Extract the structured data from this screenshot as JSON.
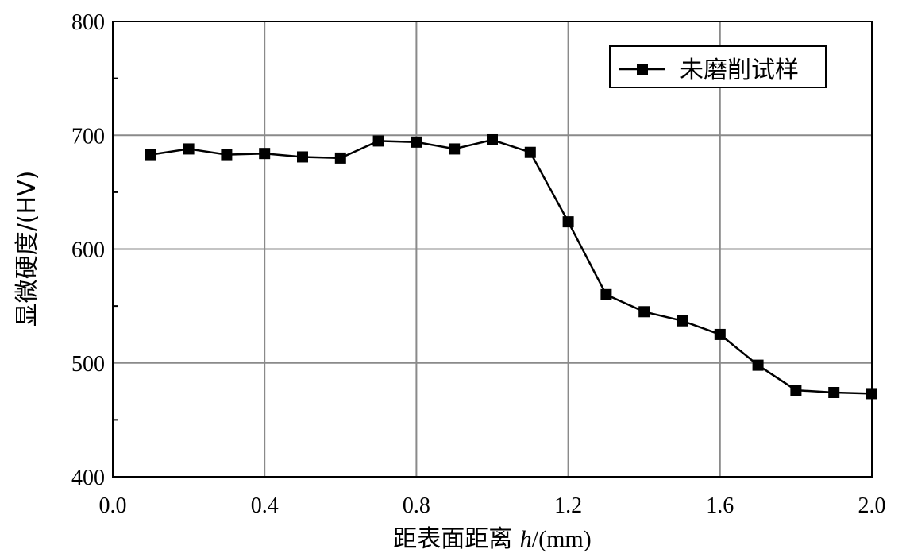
{
  "chart_data": {
    "type": "line",
    "title": "",
    "xlabel": "距表面距离 h/(mm)",
    "xlabel_prefix": "距表面距离 ",
    "xlabel_var": "h",
    "xlabel_unit": "/(mm)",
    "ylabel": "显微硬度/(HV)",
    "xlim": [
      0.0,
      2.0
    ],
    "ylim": [
      400,
      800
    ],
    "xticks": [
      0.0,
      0.4,
      0.8,
      1.2,
      1.6,
      2.0
    ],
    "xtick_labels": [
      "0.0",
      "0.4",
      "0.8",
      "1.2",
      "1.6",
      "2.0"
    ],
    "yticks": [
      400,
      500,
      600,
      700,
      800
    ],
    "ytick_labels": [
      "400",
      "500",
      "600",
      "700",
      "800"
    ],
    "grid": true,
    "legend_position": "top-right",
    "series": [
      {
        "name": "未磨削试样",
        "color": "#000000",
        "marker": "square",
        "x": [
          0.1,
          0.2,
          0.3,
          0.4,
          0.5,
          0.6,
          0.7,
          0.8,
          0.9,
          1.0,
          1.1,
          1.2,
          1.3,
          1.4,
          1.5,
          1.6,
          1.7,
          1.8,
          1.9,
          2.0
        ],
        "y": [
          683,
          688,
          683,
          684,
          681,
          680,
          695,
          694,
          688,
          696,
          685,
          624,
          560,
          545,
          537,
          525,
          498,
          476,
          474,
          473
        ]
      }
    ]
  }
}
